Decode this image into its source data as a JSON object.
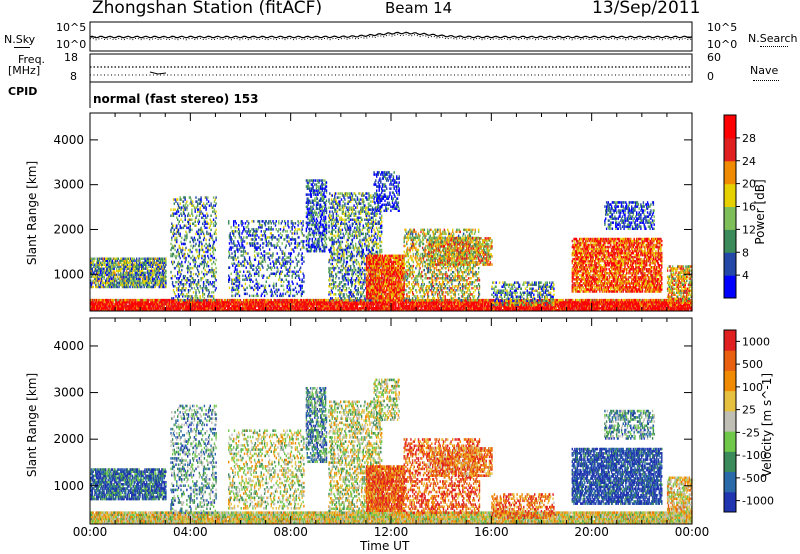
{
  "header": {
    "station": "Zhongshan Station (fitACF)",
    "beam": "Beam 14",
    "date": "13/Sep/2011"
  },
  "top_panels": {
    "nsky_label": "N.Sky",
    "nsky_ticks": [
      "10^5",
      "10^0"
    ],
    "nsearch_label": "N.Search",
    "nsearch_ticks": [
      "10^5",
      "10^0"
    ],
    "freq_label_1": "Freq.",
    "freq_label_2": "[MHz]",
    "freq_ticks": [
      "18",
      "8"
    ],
    "nave_label": "Nave",
    "nave_ticks": [
      "60",
      "0"
    ],
    "cpid_label": "CPID",
    "cpid_text": "normal (fast stereo) 153"
  },
  "chart_data": [
    {
      "type": "heatmap",
      "ylabel": "Slant Range [km]",
      "xlabel": "Time UT",
      "x_ticks": [
        "00:00",
        "04:00",
        "08:00",
        "12:00",
        "16:00",
        "20:00",
        "00:00"
      ],
      "y_ticks": [
        1000,
        2000,
        3000,
        4000
      ],
      "ylim": [
        180,
        4600
      ],
      "xlim_hours": [
        0,
        24
      ],
      "colorbar": {
        "label": "Power [dB]",
        "ticks": [
          "28",
          "24",
          "20",
          "16",
          "12",
          "8",
          "4"
        ],
        "colors": [
          "#0000ff",
          "#2448a8",
          "#3a8a5a",
          "#7fbf5a",
          "#e6d000",
          "#f08a00",
          "#e02020",
          "#ff0000"
        ]
      }
    },
    {
      "type": "heatmap",
      "ylabel": "Slant Range [km]",
      "xlabel": "Time UT",
      "x_ticks": [
        "00:00",
        "04:00",
        "08:00",
        "12:00",
        "16:00",
        "20:00",
        "00:00"
      ],
      "y_ticks": [
        1000,
        2000,
        3000,
        4000
      ],
      "ylim": [
        180,
        4600
      ],
      "xlim_hours": [
        0,
        24
      ],
      "colorbar": {
        "label": "Velocity [m s^-1]",
        "ticks": [
          "1000",
          "500",
          "100",
          "25",
          "-25",
          "-100",
          "-500",
          "-1000"
        ],
        "colors": [
          "#2035b0",
          "#2a6aa8",
          "#3a8a5a",
          "#6fc84a",
          "#bfbfb5",
          "#e6c040",
          "#f08a00",
          "#e86010",
          "#e02020"
        ]
      }
    }
  ],
  "x_axis_title": "Time UT"
}
